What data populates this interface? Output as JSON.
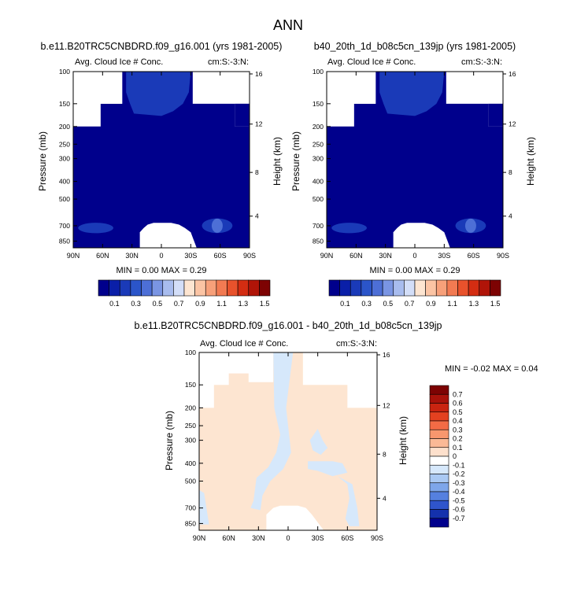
{
  "page_title": "ANN",
  "colors": {
    "navy": "#00008c",
    "blue_mid": "#1a3ab8",
    "blue_light": "#4d6fd6",
    "diff_pos": "#fde5d1",
    "diff_neg": "#d6e8fb",
    "white": "#ffffff"
  },
  "chart_data": [
    {
      "type": "heatmap",
      "id": "p1",
      "title": "b.e11.B20TRC5CNBDRD.f09_g16.001 (yrs 1981-2005)",
      "subtitle_left": "Avg. Cloud Ice # Conc.",
      "subtitle_right": "cm:S:-3:N:",
      "ylabel_left": "Pressure (mb)",
      "ylabel_right": "Height (km)",
      "x_ticks": [
        "90N",
        "60N",
        "30N",
        "0",
        "30S",
        "60S",
        "90S"
      ],
      "x_range": [
        90,
        -90
      ],
      "p_ticks": [
        "100",
        "150",
        "200",
        "250",
        "300",
        "400",
        "500",
        "700",
        "850"
      ],
      "p_values": [
        100,
        150,
        200,
        250,
        300,
        400,
        500,
        700,
        850
      ],
      "p_range": [
        100,
        925
      ],
      "h_ticks": [
        "16",
        "12",
        "8",
        "4"
      ],
      "h_pressure": [
        103,
        194,
        357,
        620
      ],
      "stats": "MIN =   0.00   MAX =   0.29",
      "colorbar_labels": [
        "0.1",
        "0.3",
        "0.5",
        "0.7",
        "0.9",
        "1.1",
        "1.3",
        "1.5"
      ],
      "colorbar_colors": [
        "#00008c",
        "#0a1fa8",
        "#1a3ab8",
        "#2b55c9",
        "#4d6fd6",
        "#7a95e3",
        "#a8bcee",
        "#d3def8",
        "#fde5d1",
        "#fbc4a4",
        "#f7a07a",
        "#f27a52",
        "#e8522c",
        "#d42d12",
        "#b01408",
        "#7d0303"
      ],
      "missing_boundary_top": [
        [
          90,
          150
        ],
        [
          65,
          150
        ],
        [
          65,
          150
        ],
        [
          40,
          150
        ],
        [
          40,
          100
        ],
        [
          -35,
          100
        ],
        [
          -35,
          150
        ],
        [
          -70,
          150
        ],
        [
          -70,
          200
        ],
        [
          -90,
          200
        ]
      ],
      "missing_boundary_bottom": [
        [
          -28,
          925
        ],
        [
          -28,
          760
        ],
        [
          -20,
          700
        ],
        [
          -15,
          660
        ],
        [
          10,
          660
        ],
        [
          28,
          700
        ],
        [
          32,
          760
        ],
        [
          32,
          925
        ]
      ]
    },
    {
      "type": "heatmap",
      "id": "p2",
      "title": "b40_20th_1d_b08c5cn_139jp (yrs 1981-2005)",
      "subtitle_left": "Avg. Cloud Ice # Conc.",
      "subtitle_right": "cm:S:-3:N:",
      "ylabel_left": "Pressure (mb)",
      "ylabel_right": "Height (km)",
      "x_ticks": [
        "90N",
        "60N",
        "30N",
        "0",
        "30S",
        "60S",
        "90S"
      ],
      "x_range": [
        90,
        -90
      ],
      "p_ticks": [
        "100",
        "150",
        "200",
        "250",
        "300",
        "400",
        "500",
        "700",
        "850"
      ],
      "p_values": [
        100,
        150,
        200,
        250,
        300,
        400,
        500,
        700,
        850
      ],
      "p_range": [
        100,
        925
      ],
      "h_ticks": [
        "16",
        "12",
        "8",
        "4"
      ],
      "h_pressure": [
        103,
        194,
        357,
        620
      ],
      "stats": "MIN =   0.00   MAX =   0.29",
      "colorbar_labels": [
        "0.1",
        "0.3",
        "0.5",
        "0.7",
        "0.9",
        "1.1",
        "1.3",
        "1.5"
      ],
      "colorbar_colors": [
        "#00008c",
        "#0a1fa8",
        "#1a3ab8",
        "#2b55c9",
        "#4d6fd6",
        "#7a95e3",
        "#a8bcee",
        "#d3def8",
        "#fde5d1",
        "#fbc4a4",
        "#f7a07a",
        "#f27a52",
        "#e8522c",
        "#d42d12",
        "#b01408",
        "#7d0303"
      ]
    },
    {
      "type": "heatmap",
      "id": "p3",
      "title": "b.e11.B20TRC5CNBDRD.f09_g16.001 - b40_20th_1d_b08c5cn_139jp",
      "subtitle_left": "Avg. Cloud Ice # Conc.",
      "subtitle_right": "cm:S:-3:N:",
      "ylabel_left": "Pressure (mb)",
      "ylabel_right": "Height (km)",
      "x_ticks": [
        "90N",
        "60N",
        "30N",
        "0",
        "30S",
        "60S",
        "90S"
      ],
      "x_range": [
        90,
        -90
      ],
      "p_ticks": [
        "100",
        "150",
        "200",
        "250",
        "300",
        "400",
        "500",
        "700",
        "850"
      ],
      "p_values": [
        100,
        150,
        200,
        250,
        300,
        400,
        500,
        700,
        850
      ],
      "p_range": [
        100,
        925
      ],
      "h_ticks": [
        "16",
        "12",
        "8",
        "4"
      ],
      "h_pressure": [
        103,
        194,
        357,
        620
      ],
      "stats": "MIN =  -0.02   MAX =   0.04",
      "colorbar_labels": [
        "0.7",
        "0.6",
        "0.5",
        "0.4",
        "0.3",
        "0.2",
        "0.1",
        "0",
        "-0.1",
        "-0.2",
        "-0.3",
        "-0.4",
        "-0.5",
        "-0.6",
        "-0.7"
      ],
      "colorbar_colors": [
        "#7d0303",
        "#a8120a",
        "#c92410",
        "#e34120",
        "#f26b45",
        "#f8976e",
        "#fbb996",
        "#fde0cc",
        "#ffffff",
        "#d6e8fb",
        "#aac9f3",
        "#7ea6ea",
        "#5580df",
        "#2f55cc",
        "#1431ad",
        "#00008c"
      ]
    }
  ]
}
